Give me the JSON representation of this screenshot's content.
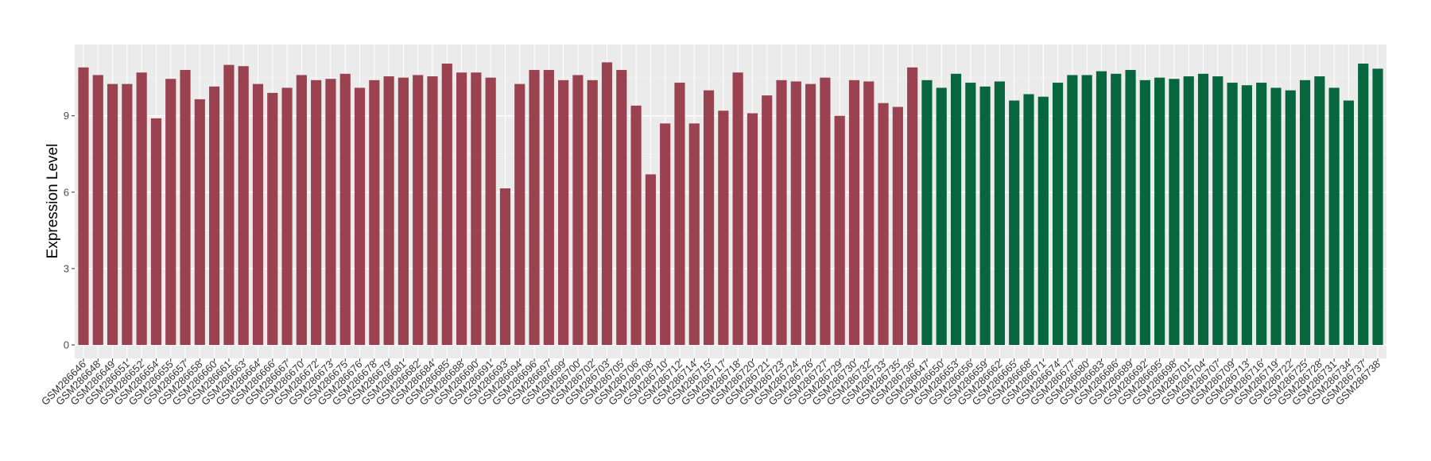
{
  "chart_data": {
    "type": "bar",
    "title": "",
    "xlabel": "",
    "ylabel": "Expression Level",
    "ylim": [
      0,
      11.8
    ],
    "yticks": [
      0,
      3,
      6,
      9
    ],
    "grid": true,
    "legend": "none",
    "series": [
      {
        "color": "#9a4250",
        "categories": [
          "GSM286646",
          "GSM286648",
          "GSM286649",
          "GSM286651",
          "GSM286652",
          "GSM286654",
          "GSM286655",
          "GSM286657",
          "GSM286658",
          "GSM286660",
          "GSM286661",
          "GSM286663",
          "GSM286664",
          "GSM286666",
          "GSM286667",
          "GSM286670",
          "GSM286672",
          "GSM286673",
          "GSM286675",
          "GSM286676",
          "GSM286678",
          "GSM286679",
          "GSM286681",
          "GSM286682",
          "GSM286684",
          "GSM286685",
          "GSM286688",
          "GSM286690",
          "GSM286691",
          "GSM286693",
          "GSM286694",
          "GSM286696",
          "GSM286697",
          "GSM286699",
          "GSM286700",
          "GSM286702",
          "GSM286703",
          "GSM286705",
          "GSM286706",
          "GSM286708",
          "GSM286710",
          "GSM286712",
          "GSM286714",
          "GSM286715",
          "GSM286717",
          "GSM286718",
          "GSM286720",
          "GSM286721",
          "GSM286723",
          "GSM286724",
          "GSM286726",
          "GSM286727",
          "GSM286729",
          "GSM286730",
          "GSM286732",
          "GSM286733",
          "GSM286735",
          "GSM286736"
        ],
        "values": [
          10.9,
          10.6,
          10.25,
          10.25,
          10.7,
          8.9,
          10.45,
          10.8,
          9.65,
          10.15,
          11.0,
          10.95,
          10.25,
          9.9,
          10.1,
          10.6,
          10.4,
          10.45,
          10.65,
          10.1,
          10.4,
          10.55,
          10.5,
          10.6,
          10.55,
          11.05,
          10.7,
          10.7,
          10.5,
          6.15,
          10.25,
          10.8,
          10.8,
          10.4,
          10.6,
          10.4,
          11.1,
          10.8,
          9.4,
          6.7,
          8.7,
          10.3,
          8.7,
          10.0,
          9.2,
          10.7,
          9.1,
          9.8,
          10.4,
          10.35,
          10.25,
          10.5,
          9.0,
          10.4,
          10.35,
          9.5,
          9.35,
          10.9
        ]
      },
      {
        "color": "#08663f",
        "categories": [
          "GSM286647",
          "GSM286650",
          "GSM286653",
          "GSM286656",
          "GSM286659",
          "GSM286662",
          "GSM286665",
          "GSM286668",
          "GSM286671",
          "GSM286674",
          "GSM286677",
          "GSM286680",
          "GSM286683",
          "GSM286686",
          "GSM286689",
          "GSM286692",
          "GSM286695",
          "GSM286698",
          "GSM286701",
          "GSM286704",
          "GSM286707",
          "GSM286709",
          "GSM286713",
          "GSM286716",
          "GSM286719",
          "GSM286722",
          "GSM286725",
          "GSM286728",
          "GSM286731",
          "GSM286734",
          "GSM286737",
          "GSM286738"
        ],
        "values": [
          10.4,
          10.1,
          10.65,
          10.3,
          10.15,
          10.35,
          9.6,
          9.85,
          9.75,
          10.3,
          10.6,
          10.6,
          10.75,
          10.65,
          10.8,
          10.4,
          10.5,
          10.45,
          10.55,
          10.65,
          10.55,
          10.3,
          10.2,
          10.3,
          10.1,
          10.0,
          10.4,
          10.55,
          10.1,
          9.6,
          11.05,
          10.85
        ]
      }
    ]
  }
}
